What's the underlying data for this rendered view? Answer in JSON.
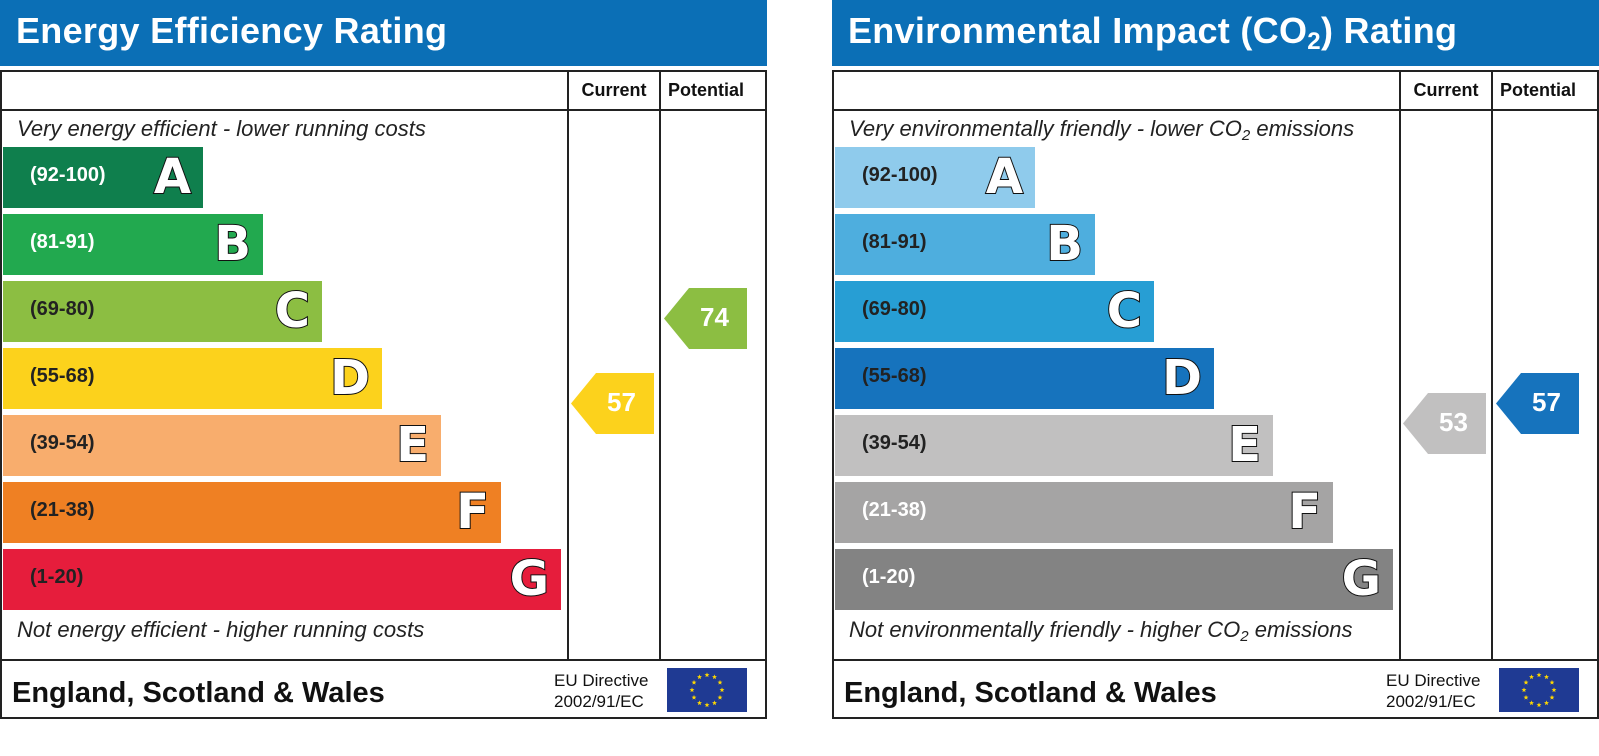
{
  "colors": {
    "header_bg": "#0b6fb6",
    "eu_flag_blue": "#1f3a93",
    "eu_star_yellow": "#ffd800"
  },
  "panels": [
    {
      "title_main": "Energy Efficiency Rating",
      "title_sub": "",
      "title_tail": "",
      "col_current": "Current",
      "col_potential": "Potential",
      "top_note": "Very energy efficient - lower running costs",
      "bottom_note": "Not energy efficient - higher running costs",
      "region": "England, Scotland & Wales",
      "eu_line1": "EU Directive",
      "eu_line2": "2002/91/EC"
    },
    {
      "title_main": "Environmental Impact (CO",
      "title_sub": "2",
      "title_tail": ") Rating",
      "col_current": "Current",
      "col_potential": "Potential",
      "top_note": "Very environmentally friendly - lower CO",
      "top_note_sub": "2",
      "top_note_tail": " emissions",
      "bottom_note": "Not environmentally friendly - higher CO",
      "bottom_note_sub": "2",
      "bottom_note_tail": " emissions",
      "region": "England, Scotland & Wales",
      "eu_line1": "EU Directive",
      "eu_line2": "2002/91/EC"
    }
  ],
  "chart_data": [
    {
      "type": "bar",
      "title": "Energy Efficiency Rating",
      "categories": [
        "(92-100)",
        "(81-91)",
        "(69-80)",
        "(55-68)",
        "(39-54)",
        "(21-38)",
        "(1-20)"
      ],
      "letters": [
        "A",
        "B",
        "C",
        "D",
        "E",
        "F",
        "G"
      ],
      "band_colors": [
        "#0f7f4d",
        "#22a94f",
        "#8cbe42",
        "#fcd21c",
        "#f8ad6d",
        "#ef8023",
        "#e61d3c"
      ],
      "range_text_dark": [
        false,
        false,
        true,
        true,
        true,
        true,
        true
      ],
      "current": {
        "value": 57,
        "color": "#fcd21c"
      },
      "potential": {
        "value": 74,
        "color": "#8cbe42"
      }
    },
    {
      "type": "bar",
      "title": "Environmental Impact (CO2) Rating",
      "categories": [
        "(92-100)",
        "(81-91)",
        "(69-80)",
        "(55-68)",
        "(39-54)",
        "(21-38)",
        "(1-20)"
      ],
      "letters": [
        "A",
        "B",
        "C",
        "D",
        "E",
        "F",
        "G"
      ],
      "band_colors": [
        "#8fcbec",
        "#4eaede",
        "#279ed4",
        "#1673bd",
        "#c1c0c0",
        "#a5a4a4",
        "#838383"
      ],
      "range_text_dark": [
        true,
        true,
        true,
        true,
        true,
        false,
        false
      ],
      "current": {
        "value": 53,
        "color": "#c1c0c0"
      },
      "potential": {
        "value": 57,
        "color": "#1673bd"
      }
    }
  ]
}
